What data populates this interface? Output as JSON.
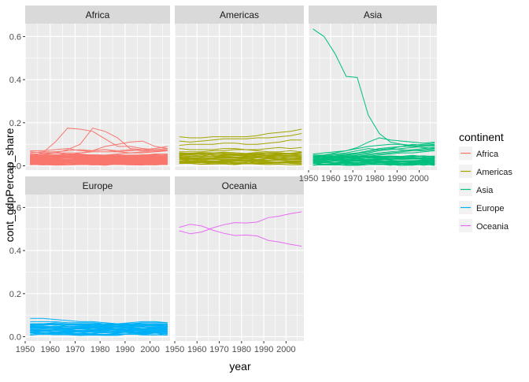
{
  "chart_data": {
    "type": "line",
    "layout": "facet_wrap",
    "x_label": "year",
    "y_label": "cont_gdpPercap_share",
    "xlim": [
      1950,
      2008
    ],
    "ylim": [
      -0.02,
      0.66
    ],
    "x_ticks": [
      1950,
      1960,
      1970,
      1980,
      1990,
      2000
    ],
    "x_tick_labels": [
      "1950",
      "1960",
      "1970",
      "1980",
      "1990",
      "2000"
    ],
    "y_ticks": [
      0.0,
      0.2,
      0.4,
      0.6
    ],
    "y_tick_labels": [
      "0.0",
      "0.2",
      "0.4",
      "0.6"
    ],
    "grid": true,
    "legend": {
      "title": "continent",
      "position": "right",
      "entries": [
        {
          "label": "Africa",
          "color": "#F8766D"
        },
        {
          "label": "Americas",
          "color": "#A3A500"
        },
        {
          "label": "Asia",
          "color": "#00BF7D"
        },
        {
          "label": "Europe",
          "color": "#00B0F6"
        },
        {
          "label": "Oceania",
          "color": "#E76BF3"
        }
      ]
    },
    "years": [
      1952,
      1957,
      1962,
      1967,
      1972,
      1977,
      1982,
      1987,
      1992,
      1997,
      2002,
      2007
    ],
    "panels": [
      {
        "title": "Africa",
        "color": "#F8766D",
        "band": {
          "count": 46,
          "min": 0.006,
          "max": 0.05
        },
        "series": [
          {
            "values": [
              0.045,
              0.06,
              0.11,
              0.175,
              0.17,
              0.16,
              0.125,
              0.09,
              0.09,
              0.08,
              0.075,
              0.08
            ]
          },
          {
            "values": [
              0.045,
              0.05,
              0.06,
              0.075,
              0.1,
              0.175,
              0.16,
              0.13,
              0.08,
              0.075,
              0.07,
              0.07
            ]
          },
          {
            "values": [
              0.07,
              0.07,
              0.075,
              0.08,
              0.07,
              0.07,
              0.075,
              0.07,
              0.075,
              0.07,
              0.07,
              0.075
            ]
          },
          {
            "values": [
              0.06,
              0.065,
              0.065,
              0.07,
              0.075,
              0.07,
              0.075,
              0.065,
              0.06,
              0.065,
              0.065,
              0.07
            ]
          },
          {
            "values": [
              0.055,
              0.055,
              0.06,
              0.06,
              0.06,
              0.065,
              0.065,
              0.065,
              0.07,
              0.075,
              0.08,
              0.09
            ]
          },
          {
            "values": [
              0.05,
              0.05,
              0.05,
              0.055,
              0.055,
              0.05,
              0.05,
              0.055,
              0.06,
              0.06,
              0.065,
              0.07
            ]
          },
          {
            "values": [
              0.065,
              0.06,
              0.06,
              0.055,
              0.05,
              0.05,
              0.045,
              0.045,
              0.05,
              0.05,
              0.055,
              0.055
            ]
          },
          {
            "values": [
              0.04,
              0.045,
              0.045,
              0.05,
              0.06,
              0.07,
              0.09,
              0.1,
              0.11,
              0.115,
              0.09,
              0.08
            ]
          },
          {
            "values": [
              0.05,
              0.05,
              0.05,
              0.05,
              0.05,
              0.045,
              0.045,
              0.045,
              0.045,
              0.05,
              0.05,
              0.05
            ]
          }
        ]
      },
      {
        "title": "Americas",
        "color": "#A3A500",
        "band": {
          "count": 22,
          "min": 0.008,
          "max": 0.06
        },
        "series": [
          {
            "values": [
              0.135,
              0.13,
              0.13,
              0.135,
              0.135,
              0.135,
              0.135,
              0.14,
              0.15,
              0.155,
              0.16,
              0.17
            ]
          },
          {
            "values": [
              0.115,
              0.11,
              0.115,
              0.12,
              0.125,
              0.125,
              0.125,
              0.13,
              0.13,
              0.135,
              0.14,
              0.15
            ]
          },
          {
            "values": [
              0.095,
              0.1,
              0.1,
              0.1,
              0.105,
              0.105,
              0.1,
              0.1,
              0.105,
              0.11,
              0.12,
              0.12
            ]
          },
          {
            "values": [
              0.08,
              0.075,
              0.075,
              0.075,
              0.08,
              0.08,
              0.075,
              0.075,
              0.08,
              0.085,
              0.08,
              0.085
            ]
          },
          {
            "values": [
              0.065,
              0.065,
              0.065,
              0.07,
              0.07,
              0.075,
              0.075,
              0.07,
              0.065,
              0.065,
              0.07,
              0.065
            ]
          },
          {
            "values": [
              0.05,
              0.055,
              0.06,
              0.06,
              0.055,
              0.055,
              0.05,
              0.055,
              0.06,
              0.06,
              0.055,
              0.06
            ]
          }
        ]
      },
      {
        "title": "Asia",
        "color": "#00BF7D",
        "band": {
          "count": 24,
          "min": 0.003,
          "max": 0.045
        },
        "series": [
          {
            "values": [
              0.635,
              0.6,
              0.52,
              0.415,
              0.41,
              0.235,
              0.15,
              0.11,
              0.1,
              0.09,
              0.085,
              0.08
            ]
          },
          {
            "values": [
              0.055,
              0.06,
              0.065,
              0.07,
              0.085,
              0.11,
              0.13,
              0.12,
              0.115,
              0.11,
              0.105,
              0.11
            ]
          },
          {
            "values": [
              0.045,
              0.05,
              0.06,
              0.07,
              0.08,
              0.09,
              0.095,
              0.1,
              0.1,
              0.095,
              0.1,
              0.105
            ]
          },
          {
            "values": [
              0.05,
              0.05,
              0.055,
              0.06,
              0.07,
              0.08,
              0.075,
              0.08,
              0.09,
              0.1,
              0.095,
              0.095
            ]
          },
          {
            "values": [
              0.035,
              0.04,
              0.045,
              0.05,
              0.06,
              0.07,
              0.08,
              0.085,
              0.09,
              0.09,
              0.095,
              0.1
            ]
          },
          {
            "values": [
              0.04,
              0.045,
              0.05,
              0.05,
              0.055,
              0.06,
              0.07,
              0.075,
              0.08,
              0.085,
              0.09,
              0.09
            ]
          },
          {
            "values": [
              0.03,
              0.035,
              0.04,
              0.045,
              0.05,
              0.055,
              0.06,
              0.065,
              0.07,
              0.075,
              0.08,
              0.085
            ]
          },
          {
            "values": [
              0.045,
              0.045,
              0.05,
              0.055,
              0.06,
              0.065,
              0.075,
              0.08,
              0.075,
              0.07,
              0.07,
              0.075
            ]
          },
          {
            "values": [
              0.03,
              0.03,
              0.035,
              0.04,
              0.045,
              0.05,
              0.055,
              0.06,
              0.065,
              0.07,
              0.075,
              0.08
            ]
          },
          {
            "values": [
              0.025,
              0.03,
              0.035,
              0.035,
              0.04,
              0.045,
              0.05,
              0.055,
              0.06,
              0.06,
              0.065,
              0.07
            ]
          }
        ]
      },
      {
        "title": "Europe",
        "color": "#00B0F6",
        "band": {
          "count": 28,
          "min": 0.01,
          "max": 0.058
        },
        "series": [
          {
            "values": [
              0.085,
              0.085,
              0.08,
              0.075,
              0.07,
              0.07,
              0.065,
              0.06,
              0.065,
              0.07,
              0.07,
              0.065
            ]
          },
          {
            "values": [
              0.07,
              0.07,
              0.07,
              0.065,
              0.065,
              0.065,
              0.06,
              0.06,
              0.06,
              0.065,
              0.065,
              0.065
            ]
          },
          {
            "values": [
              0.06,
              0.06,
              0.065,
              0.06,
              0.06,
              0.06,
              0.06,
              0.06,
              0.055,
              0.06,
              0.06,
              0.06
            ]
          }
        ]
      },
      {
        "title": "Oceania",
        "color": "#E76BF3",
        "band": {
          "count": 0,
          "min": 0.0,
          "max": 0.0
        },
        "series": [
          {
            "values": [
              0.508,
              0.522,
              0.514,
              0.495,
              0.48,
              0.47,
              0.472,
              0.468,
              0.447,
              0.44,
              0.429,
              0.42
            ]
          },
          {
            "values": [
              0.492,
              0.478,
              0.486,
              0.505,
              0.52,
              0.53,
              0.528,
              0.532,
              0.553,
              0.56,
              0.571,
              0.58
            ]
          }
        ]
      }
    ]
  }
}
